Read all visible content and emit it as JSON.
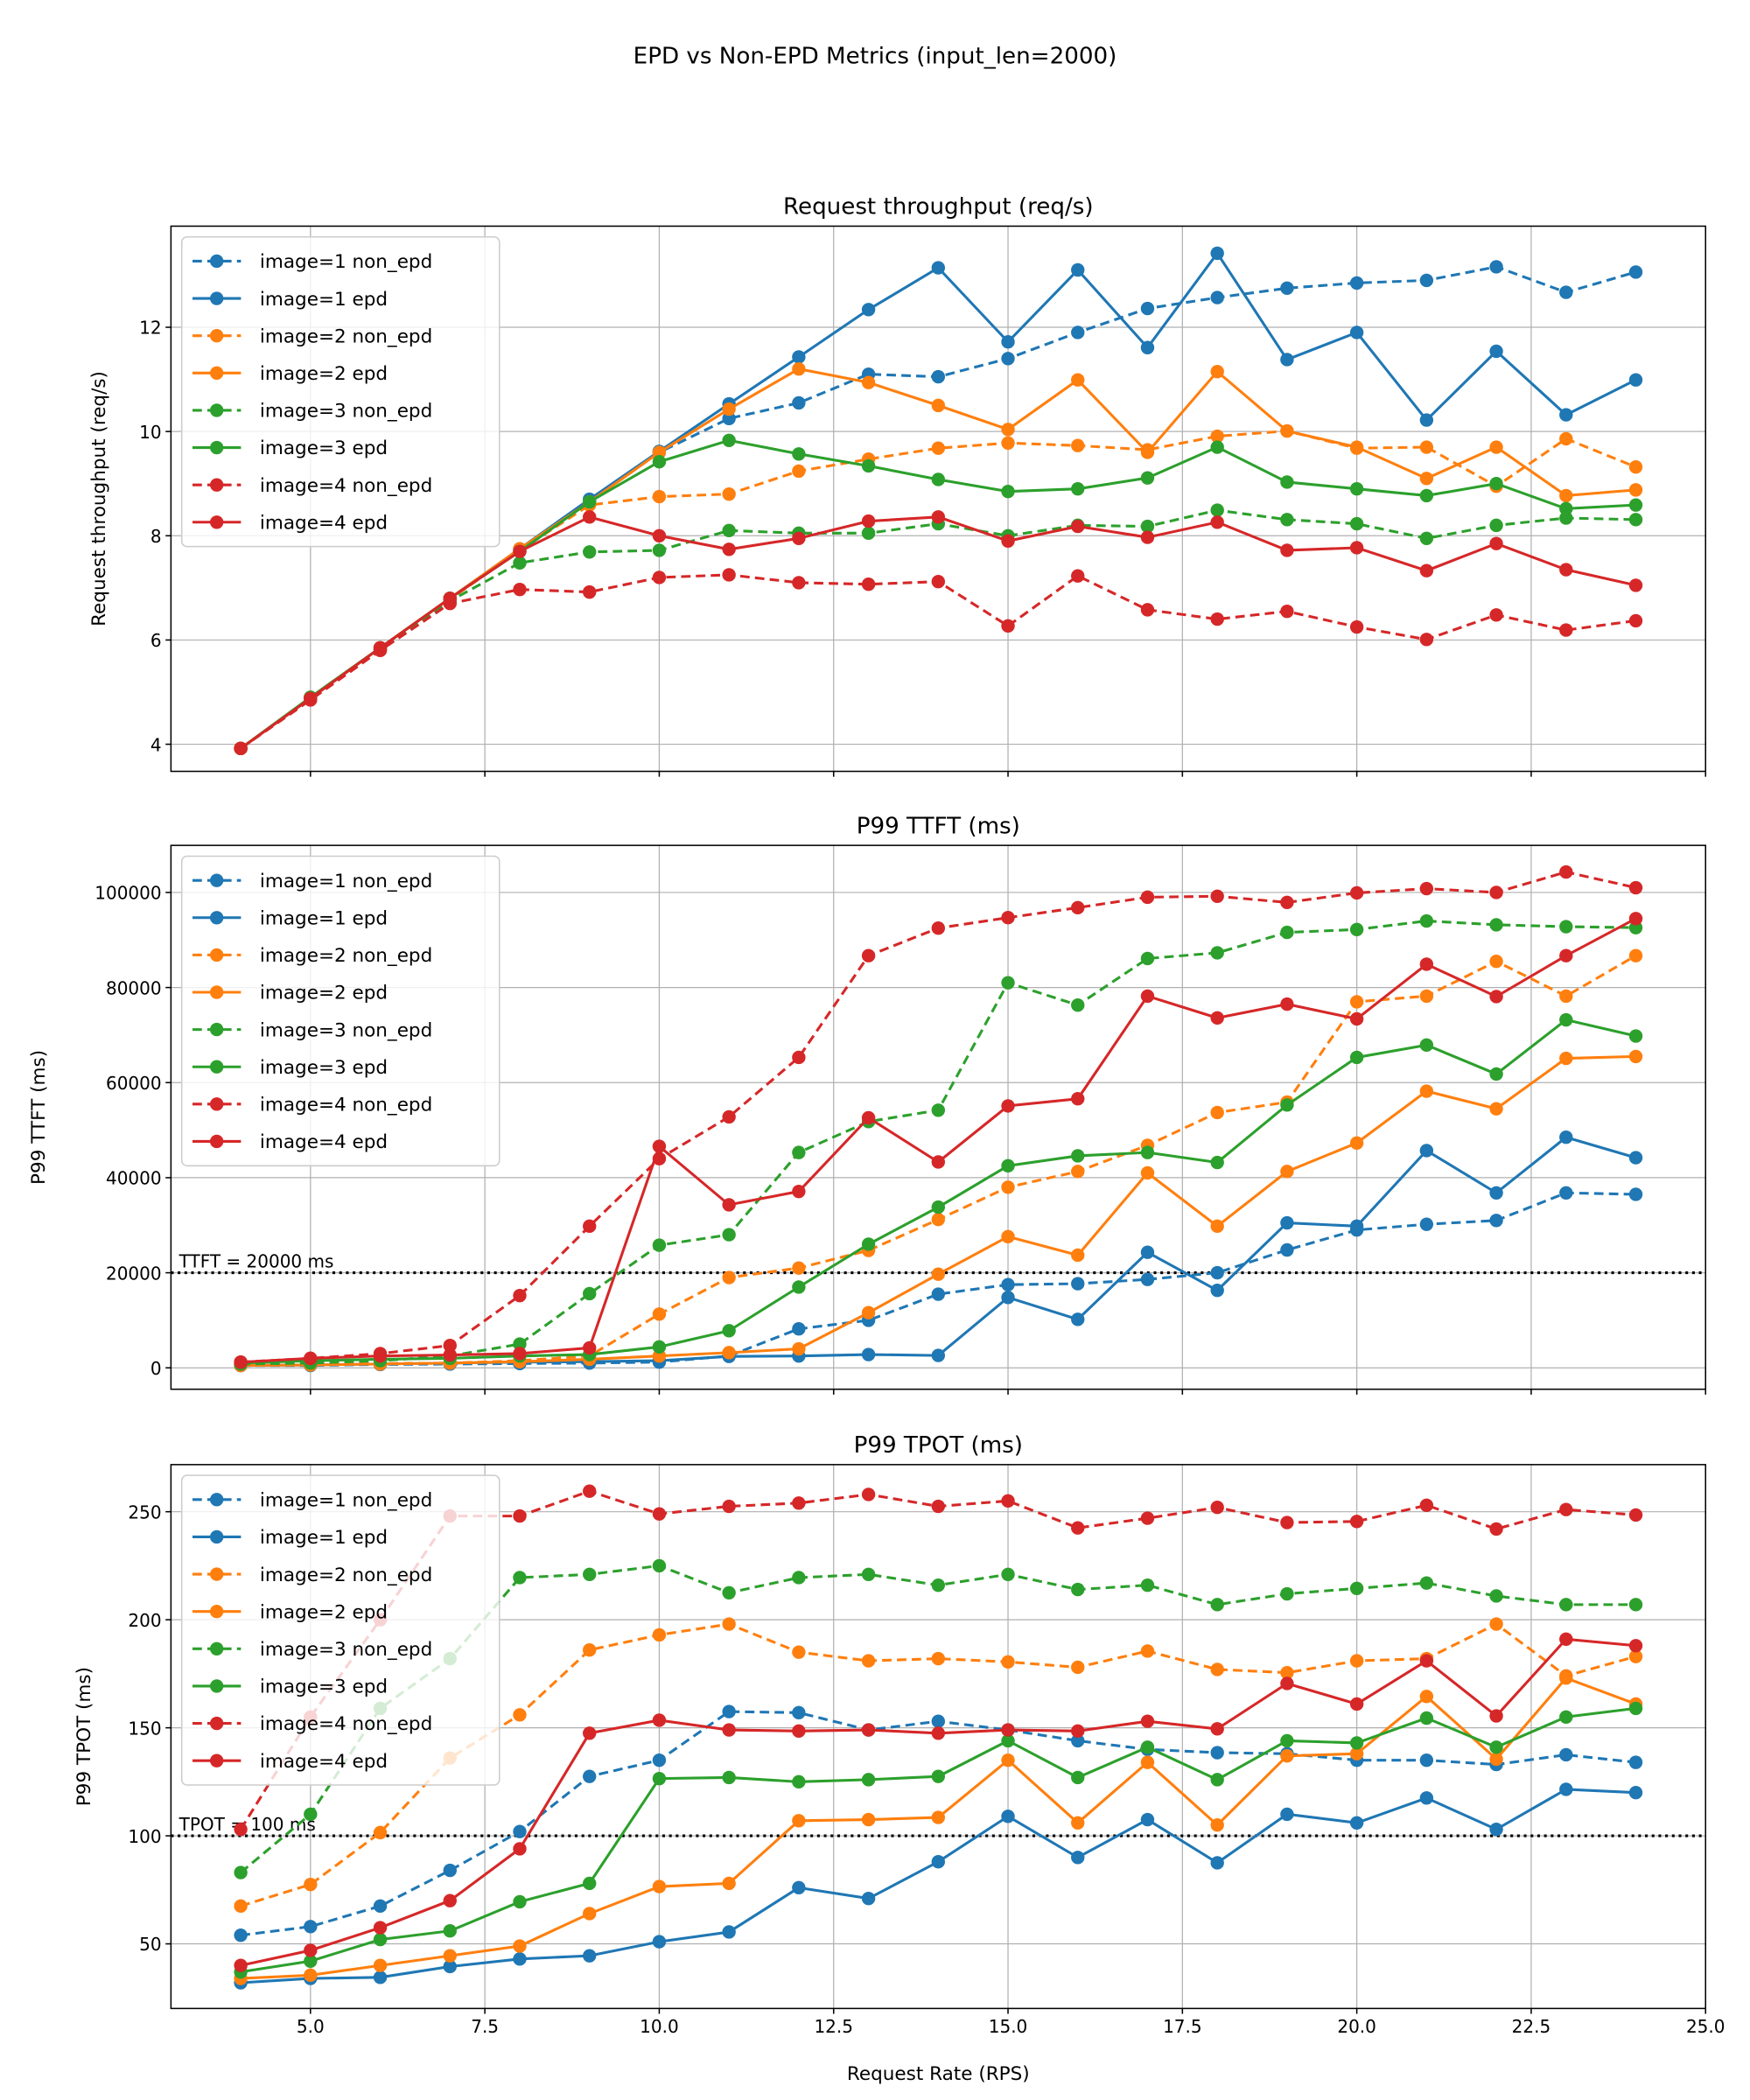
{
  "suptitle": "EPD vs Non-EPD Metrics (input_len=2000)",
  "colors": {
    "image=1": "#1f77b4",
    "image=2": "#ff7f0e",
    "image=3": "#2ca02c",
    "image=4": "#d62728"
  },
  "chart_data": [
    {
      "type": "line",
      "title": "Request throughput (req/s)",
      "xlabel": "",
      "ylabel": "Request throughput (req/s)",
      "xlim": [
        3,
        25
      ],
      "ylim": [
        3.48,
        13.94
      ],
      "xticks": [
        "5.0",
        "7.5",
        "10.0",
        "12.5",
        "15.0",
        "17.5",
        "20.0",
        "22.5",
        "25.0"
      ],
      "yticks": [
        4,
        6,
        8,
        10,
        12
      ],
      "grid": true,
      "legend": "top-left",
      "x": [
        4,
        5,
        6,
        7,
        8,
        9,
        10,
        11,
        12,
        13,
        14,
        15,
        16,
        17,
        18,
        19,
        20,
        21,
        22,
        23,
        24
      ],
      "series": [
        {
          "name": "image=1 non_epd",
          "color": "#1f77b4",
          "dashed": true,
          "values": [
            3.92,
            4.88,
            5.82,
            6.8,
            7.7,
            8.65,
            9.6,
            10.25,
            10.55,
            11.1,
            11.05,
            11.4,
            11.9,
            12.36,
            12.57,
            12.75,
            12.85,
            12.9,
            13.16,
            12.67,
            13.06
          ]
        },
        {
          "name": "image=1 epd",
          "color": "#1f77b4",
          "dashed": false,
          "values": [
            3.92,
            4.9,
            5.85,
            6.8,
            7.75,
            8.7,
            9.62,
            10.53,
            11.43,
            12.34,
            13.14,
            11.72,
            13.1,
            11.61,
            13.42,
            11.38,
            11.9,
            10.22,
            11.54,
            10.32,
            10.99
          ]
        },
        {
          "name": "image=2 non_epd",
          "color": "#ff7f0e",
          "dashed": true,
          "values": [
            3.92,
            4.88,
            5.82,
            6.78,
            7.72,
            8.59,
            8.75,
            8.8,
            9.24,
            9.47,
            9.68,
            9.78,
            9.73,
            9.65,
            9.91,
            10.01,
            9.68,
            9.7,
            8.95,
            9.86,
            9.32
          ]
        },
        {
          "name": "image=2 epd",
          "color": "#ff7f0e",
          "dashed": false,
          "values": [
            3.92,
            4.9,
            5.85,
            6.8,
            7.75,
            8.65,
            9.6,
            10.43,
            11.2,
            10.94,
            10.5,
            10.04,
            10.99,
            9.6,
            11.15,
            10.01,
            9.7,
            9.1,
            9.7,
            8.77,
            8.88
          ]
        },
        {
          "name": "image=3 non_epd",
          "color": "#2ca02c",
          "dashed": true,
          "values": [
            3.92,
            4.88,
            5.82,
            6.75,
            7.48,
            7.69,
            7.72,
            8.1,
            8.05,
            8.05,
            8.23,
            8.0,
            8.2,
            8.18,
            8.49,
            8.31,
            8.23,
            7.95,
            8.2,
            8.34,
            8.31
          ]
        },
        {
          "name": "image=3 epd",
          "color": "#2ca02c",
          "dashed": false,
          "values": [
            3.92,
            4.9,
            5.85,
            6.8,
            7.7,
            8.65,
            9.42,
            9.83,
            9.57,
            9.34,
            9.08,
            8.85,
            8.9,
            9.11,
            9.7,
            9.03,
            8.9,
            8.77,
            9.0,
            8.52,
            8.59
          ]
        },
        {
          "name": "image=4 non_epd",
          "color": "#d62728",
          "dashed": true,
          "values": [
            3.92,
            4.85,
            5.8,
            6.7,
            6.97,
            6.92,
            7.2,
            7.25,
            7.1,
            7.07,
            7.12,
            6.27,
            7.23,
            6.58,
            6.4,
            6.55,
            6.25,
            6.01,
            6.48,
            6.19,
            6.37
          ]
        },
        {
          "name": "image=4 epd",
          "color": "#d62728",
          "dashed": false,
          "values": [
            3.92,
            4.88,
            5.85,
            6.8,
            7.7,
            8.36,
            8.0,
            7.74,
            7.95,
            8.28,
            8.36,
            7.9,
            8.18,
            7.97,
            8.26,
            7.72,
            7.77,
            7.33,
            7.85,
            7.35,
            7.05
          ]
        }
      ]
    },
    {
      "type": "line",
      "title": "P99 TTFT (ms)",
      "xlabel": "",
      "ylabel": "P99 TTFT (ms)",
      "xlim": [
        3,
        25
      ],
      "ylim": [
        -4500,
        109900
      ],
      "xticks": [
        "5.0",
        "7.5",
        "10.0",
        "12.5",
        "15.0",
        "17.5",
        "20.0",
        "22.5",
        "25.0"
      ],
      "yticks": [
        0,
        20000,
        40000,
        60000,
        80000,
        100000
      ],
      "grid": true,
      "legend": "top-left",
      "reference_line": {
        "value": 20000,
        "label": "TTFT = 20000 ms",
        "style": "dotted",
        "color": "#000000"
      },
      "x": [
        4,
        5,
        6,
        7,
        8,
        9,
        10,
        11,
        12,
        13,
        14,
        15,
        16,
        17,
        18,
        19,
        20,
        21,
        22,
        23,
        24
      ],
      "series": [
        {
          "name": "image=1 non_epd",
          "color": "#1f77b4",
          "dashed": true,
          "values": [
            500,
            500,
            700,
            800,
            900,
            1000,
            1200,
            2500,
            8200,
            10000,
            15500,
            17500,
            17700,
            18600,
            20000,
            24800,
            29000,
            30200,
            31000,
            36800,
            36500
          ]
        },
        {
          "name": "image=1 epd",
          "color": "#1f77b4",
          "dashed": false,
          "values": [
            500,
            600,
            800,
            1000,
            1200,
            1300,
            1500,
            2400,
            2500,
            2800,
            2600,
            14800,
            10200,
            24300,
            16300,
            30500,
            29800,
            45700,
            36800,
            48500,
            44200
          ]
        },
        {
          "name": "image=2 non_epd",
          "color": "#ff7f0e",
          "dashed": true,
          "values": [
            600,
            700,
            900,
            1000,
            1500,
            2500,
            11300,
            19000,
            21000,
            24700,
            31200,
            38000,
            41300,
            46800,
            53700,
            55900,
            77000,
            78200,
            85500,
            78200,
            86700
          ]
        },
        {
          "name": "image=2 epd",
          "color": "#ff7f0e",
          "dashed": false,
          "values": [
            500,
            600,
            800,
            1000,
            1300,
            1800,
            2500,
            3200,
            4000,
            11600,
            19700,
            27600,
            23700,
            41000,
            29800,
            41300,
            47300,
            58200,
            54500,
            65100,
            65500
          ]
        },
        {
          "name": "image=3 non_epd",
          "color": "#2ca02c",
          "dashed": true,
          "values": [
            800,
            1000,
            1500,
            2500,
            5000,
            15600,
            25800,
            28000,
            45300,
            51800,
            54200,
            81000,
            76300,
            86100,
            87300,
            91600,
            92200,
            94000,
            93200,
            92800,
            92600
          ]
        },
        {
          "name": "image=3 epd",
          "color": "#2ca02c",
          "dashed": false,
          "values": [
            1000,
            1500,
            1800,
            2000,
            2500,
            2800,
            4400,
            7800,
            17000,
            26000,
            33800,
            42500,
            44600,
            45300,
            43200,
            55300,
            65300,
            67900,
            61800,
            73200,
            69800
          ]
        },
        {
          "name": "image=4 non_epd",
          "color": "#d62728",
          "dashed": true,
          "values": [
            1200,
            2000,
            3000,
            4700,
            15200,
            29800,
            44000,
            52800,
            65300,
            86700,
            92500,
            94700,
            96800,
            99000,
            99200,
            97900,
            99900,
            100800,
            100000,
            104300,
            101000
          ]
        },
        {
          "name": "image=4 epd",
          "color": "#d62728",
          "dashed": false,
          "values": [
            1200,
            2000,
            2500,
            2700,
            3000,
            4200,
            46600,
            34300,
            37100,
            52600,
            43300,
            55100,
            56600,
            78200,
            73600,
            76500,
            73400,
            84900,
            78100,
            86700,
            94500
          ]
        }
      ]
    },
    {
      "type": "line",
      "title": "P99 TPOT (ms)",
      "xlabel": "Request Rate (RPS)",
      "ylabel": "P99 TPOT (ms)",
      "xlim": [
        3,
        25
      ],
      "ylim": [
        20.1,
        271.8
      ],
      "xticks": [
        "5.0",
        "7.5",
        "10.0",
        "12.5",
        "15.0",
        "17.5",
        "20.0",
        "22.5",
        "25.0"
      ],
      "yticks": [
        50,
        100,
        150,
        200,
        250
      ],
      "grid": true,
      "legend": "top-left",
      "reference_line": {
        "value": 100,
        "label": "TPOT = 100 ms",
        "style": "dotted",
        "color": "#000000"
      },
      "x": [
        4,
        5,
        6,
        7,
        8,
        9,
        10,
        11,
        12,
        13,
        14,
        15,
        16,
        17,
        18,
        19,
        20,
        21,
        22,
        23,
        24
      ],
      "series": [
        {
          "name": "image=1 non_epd",
          "color": "#1f77b4",
          "dashed": true,
          "values": [
            54,
            58,
            67.5,
            84,
            102,
            127.5,
            135,
            157.5,
            157,
            149,
            153,
            149,
            144,
            140,
            138.5,
            138,
            135,
            135,
            133,
            137.5,
            134
          ]
        },
        {
          "name": "image=1 epd",
          "color": "#1f77b4",
          "dashed": false,
          "values": [
            32,
            34,
            34.5,
            39.5,
            43,
            44.5,
            51,
            55.5,
            76,
            71,
            88,
            109,
            90,
            107.5,
            87.5,
            110,
            106,
            117.5,
            103,
            121.5,
            120
          ]
        },
        {
          "name": "image=2 non_epd",
          "color": "#ff7f0e",
          "dashed": true,
          "values": [
            67.5,
            77.5,
            101.5,
            136,
            156,
            186,
            193,
            198,
            185,
            181,
            182,
            180.5,
            178,
            185.5,
            177,
            175.5,
            181,
            182,
            198,
            174,
            183
          ]
        },
        {
          "name": "image=2 epd",
          "color": "#ff7f0e",
          "dashed": false,
          "values": [
            34,
            35.5,
            40,
            44.5,
            49,
            64,
            76.5,
            78,
            107,
            107.5,
            108.5,
            135,
            106,
            134,
            105,
            137,
            138,
            164.5,
            135.5,
            173,
            161
          ]
        },
        {
          "name": "image=3 non_epd",
          "color": "#2ca02c",
          "dashed": true,
          "values": [
            83,
            110,
            159,
            182,
            219.5,
            221,
            225,
            212.5,
            219.5,
            221,
            216,
            221,
            214,
            216,
            207,
            212,
            214.5,
            217,
            211,
            207,
            207
          ]
        },
        {
          "name": "image=3 epd",
          "color": "#2ca02c",
          "dashed": false,
          "values": [
            37,
            42,
            52,
            56,
            69.5,
            78,
            126.5,
            127,
            125,
            126,
            127.5,
            144,
            127,
            141,
            126,
            144,
            143,
            154.5,
            141,
            155,
            159
          ]
        },
        {
          "name": "image=4 non_epd",
          "color": "#d62728",
          "dashed": true,
          "values": [
            103,
            155,
            200,
            248,
            248,
            259.5,
            249,
            252.5,
            254,
            258,
            252.5,
            255,
            242.5,
            247,
            252,
            245,
            245.5,
            253,
            242,
            251,
            248.5
          ]
        },
        {
          "name": "image=4 epd",
          "color": "#d62728",
          "dashed": false,
          "values": [
            40,
            47,
            57.5,
            70,
            94,
            147.5,
            153.5,
            149,
            148.5,
            149,
            147.5,
            149,
            148.5,
            153,
            149.5,
            170.5,
            161,
            181,
            155.5,
            191,
            188
          ]
        }
      ]
    }
  ]
}
